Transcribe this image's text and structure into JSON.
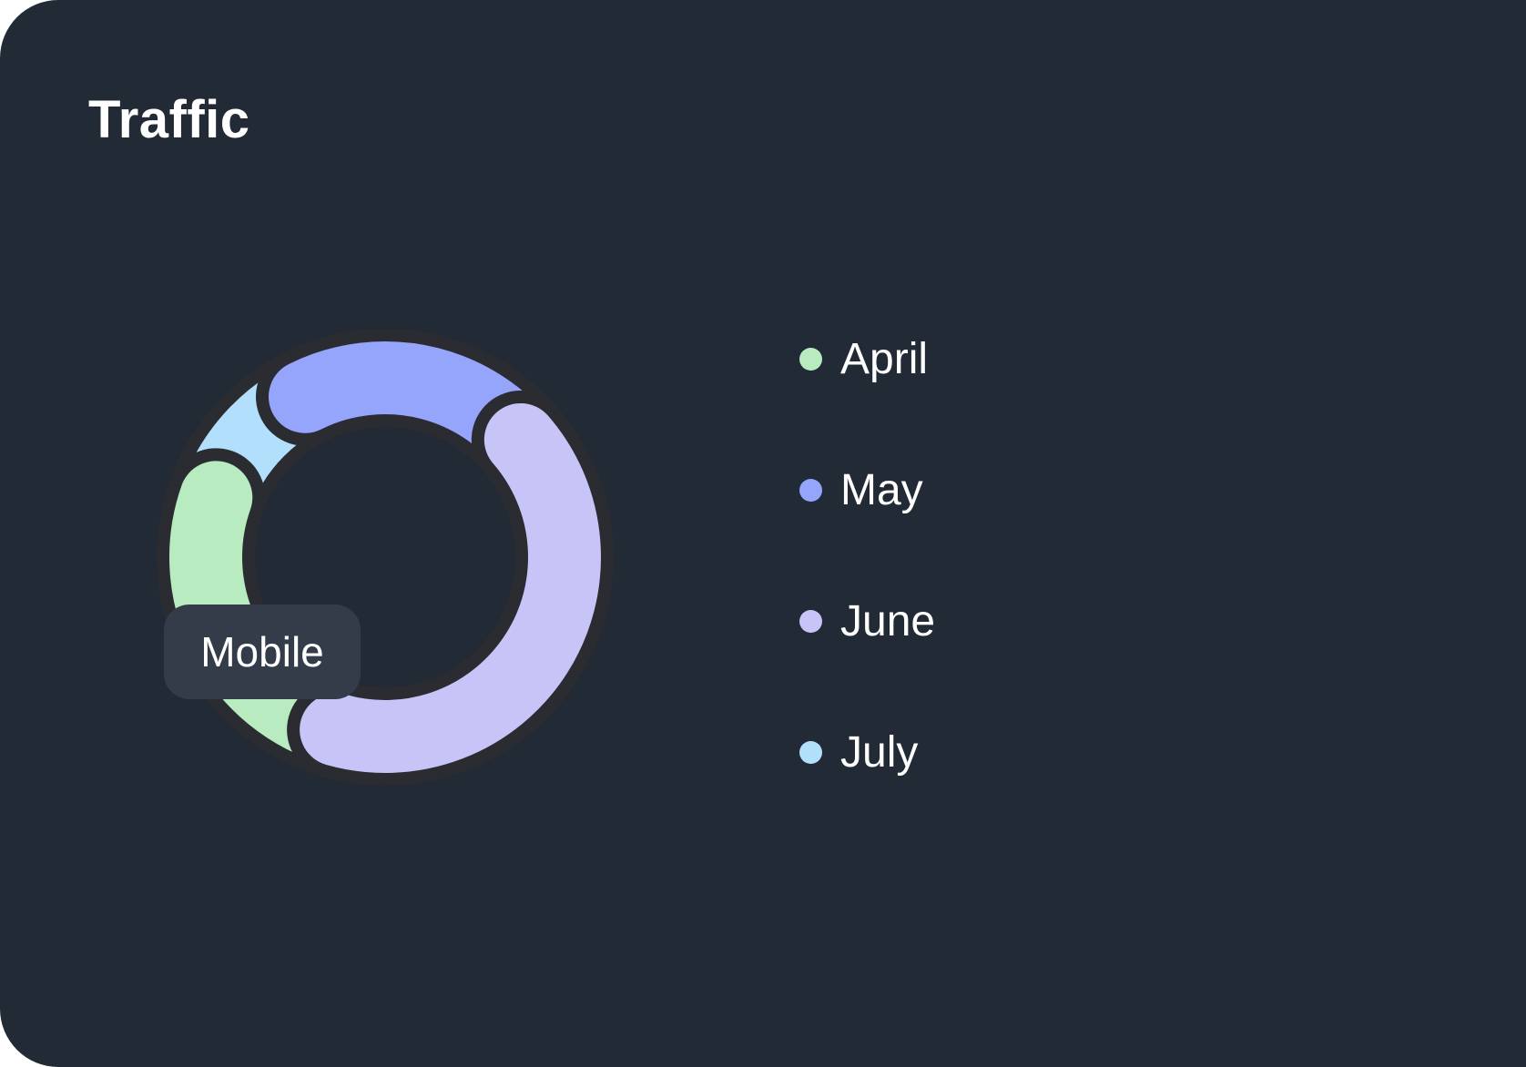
{
  "title": "Traffic",
  "tooltip": {
    "label": "Mobile"
  },
  "colors": {
    "background": "#212a35",
    "tooltip_bg": "#343c49",
    "segment_border": "#2b2c31"
  },
  "legend": {
    "items": [
      {
        "label": "April",
        "color": "#b8ebbf"
      },
      {
        "label": "May",
        "color": "#95a5fc"
      },
      {
        "label": "June",
        "color": "#c7c5f7"
      },
      {
        "label": "July",
        "color": "#b2e0fc"
      }
    ]
  },
  "chart_data": {
    "type": "pie",
    "variant": "donut",
    "title": "Traffic",
    "categories": [
      "April",
      "May",
      "June",
      "July"
    ],
    "values": [
      26,
      21,
      39,
      14
    ],
    "colors": [
      "#b8ebbf",
      "#95a5fc",
      "#c7c5f7",
      "#b2e0fc"
    ],
    "legend_position": "right",
    "tooltip": "Mobile"
  }
}
